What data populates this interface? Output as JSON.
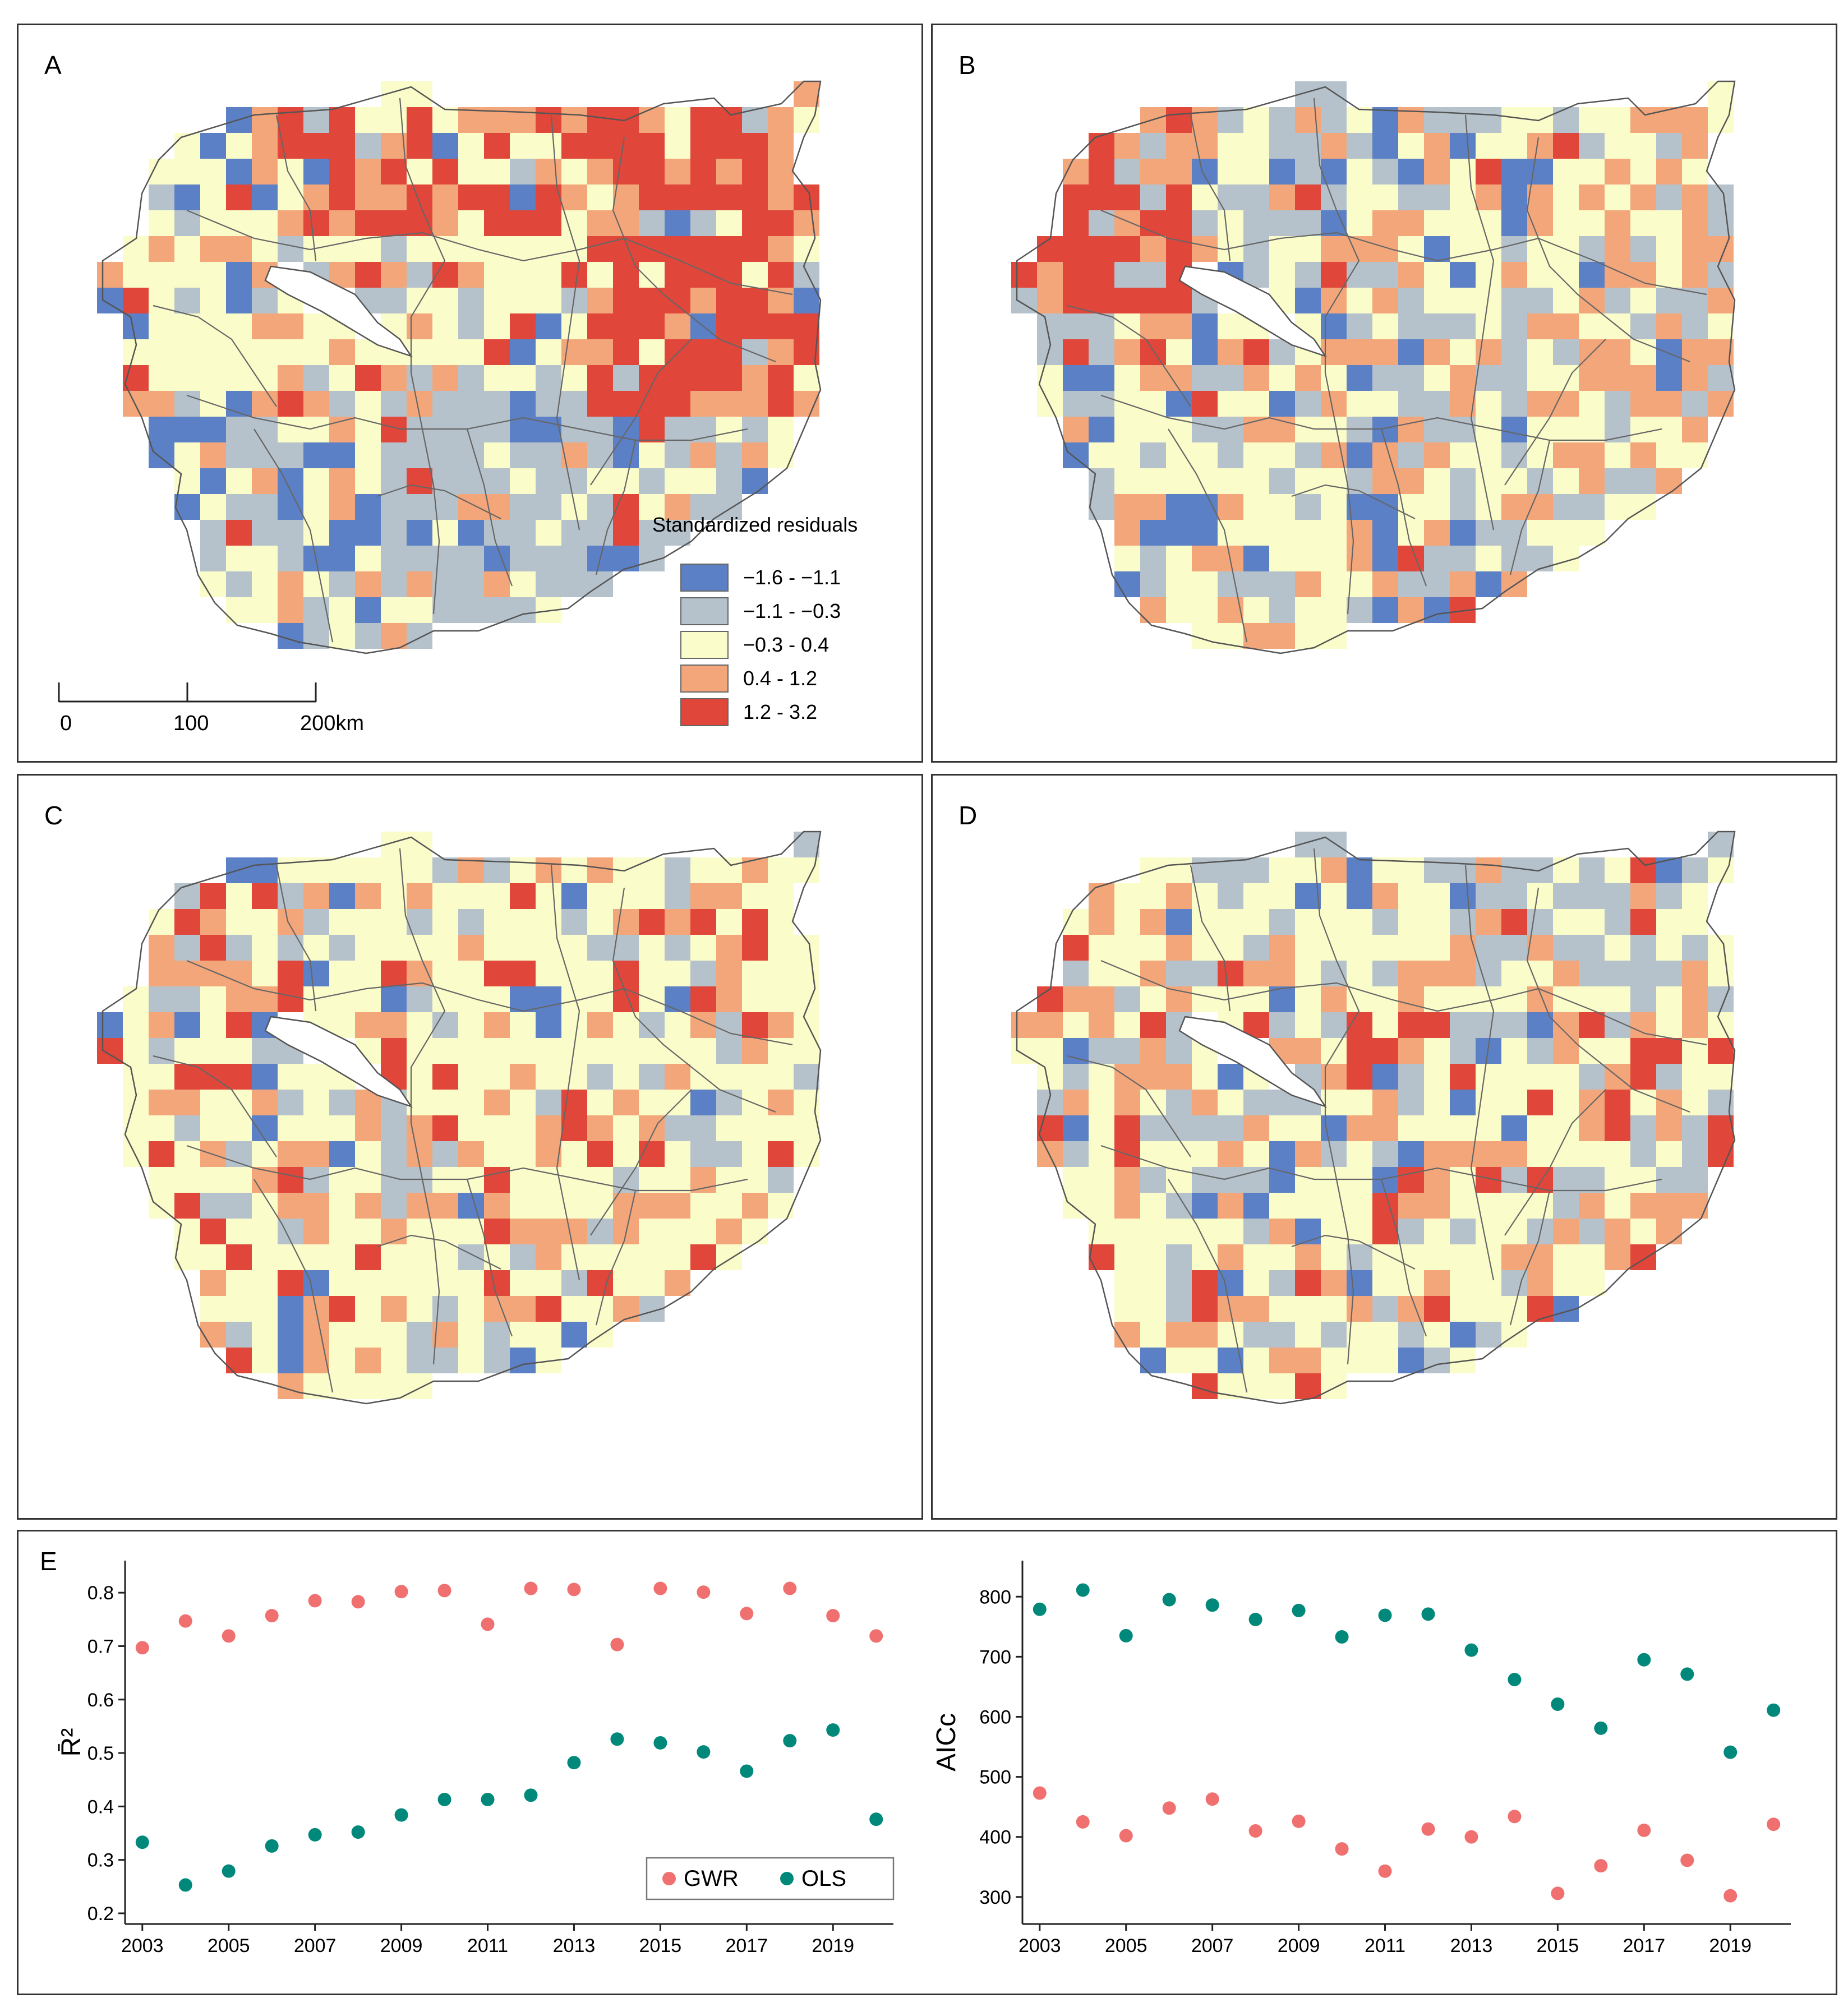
{
  "panels": [
    {
      "label": "A",
      "seed": 11,
      "profile": "A"
    },
    {
      "label": "B",
      "seed": 23,
      "profile": "B"
    },
    {
      "label": "C",
      "seed": 37,
      "profile": "C"
    },
    {
      "label": "D",
      "seed": 53,
      "profile": "D"
    }
  ],
  "legend": {
    "title": "Standardized residuals",
    "classes": [
      {
        "label": "−1.6 - −1.1",
        "color": "#5b80c6"
      },
      {
        "label": "−1.1 - −0.3",
        "color": "#b6c2cb"
      },
      {
        "label": "−0.3 - 0.4",
        "color": "#fafcca"
      },
      {
        "label": "0.4 - 1.2",
        "color": "#f3a67a"
      },
      {
        "label": "1.2 - 3.2",
        "color": "#e0463a"
      }
    ]
  },
  "scale_bar": {
    "labels": [
      "0",
      "100",
      "200km"
    ]
  },
  "panel_e_label": "E",
  "chart_data": [
    {
      "type": "scatter",
      "title": "",
      "xlabel": "",
      "ylabel": "R̄²",
      "ylim": [
        0.18,
        0.86
      ],
      "yticks": [
        0.2,
        0.3,
        0.4,
        0.5,
        0.6,
        0.7,
        0.8
      ],
      "xticks": [
        2003,
        2005,
        2007,
        2009,
        2011,
        2013,
        2015,
        2017,
        2019
      ],
      "x": [
        2003,
        2004,
        2005,
        2006,
        2007,
        2008,
        2009,
        2010,
        2011,
        2012,
        2013,
        2014,
        2015,
        2016,
        2017,
        2018,
        2019,
        2020
      ],
      "series": [
        {
          "name": "GWR",
          "color": "#f07070",
          "values": [
            0.697,
            0.747,
            0.719,
            0.757,
            0.785,
            0.783,
            0.802,
            0.804,
            0.741,
            0.808,
            0.806,
            0.703,
            0.808,
            0.801,
            0.761,
            0.808,
            0.757,
            0.719
          ]
        },
        {
          "name": "OLS",
          "color": "#00897b",
          "values": [
            0.333,
            0.253,
            0.279,
            0.326,
            0.347,
            0.352,
            0.384,
            0.413,
            0.413,
            0.421,
            0.482,
            0.526,
            0.519,
            0.502,
            0.466,
            0.523,
            0.543,
            0.376
          ]
        }
      ],
      "legend": [
        "GWR",
        "OLS"
      ],
      "legend_position": "bottom-right"
    },
    {
      "type": "scatter",
      "title": "",
      "xlabel": "",
      "ylabel": "AICc",
      "ylim": [
        255,
        860
      ],
      "yticks": [
        300,
        400,
        500,
        600,
        700,
        800
      ],
      "xticks": [
        2003,
        2005,
        2007,
        2009,
        2011,
        2013,
        2015,
        2017,
        2019
      ],
      "x": [
        2003,
        2004,
        2005,
        2006,
        2007,
        2008,
        2009,
        2010,
        2011,
        2012,
        2013,
        2014,
        2015,
        2016,
        2017,
        2018,
        2019,
        2020
      ],
      "series": [
        {
          "name": "GWR",
          "color": "#f07070",
          "values": [
            473,
            425,
            402,
            448,
            463,
            410,
            426,
            380,
            343,
            413,
            400,
            434,
            306,
            352,
            411,
            361,
            302,
            421
          ]
        },
        {
          "name": "OLS",
          "color": "#00897b",
          "values": [
            779,
            811,
            735,
            795,
            786,
            762,
            777,
            733,
            769,
            771,
            711,
            662,
            621,
            581,
            695,
            671,
            541,
            611
          ]
        }
      ]
    }
  ]
}
